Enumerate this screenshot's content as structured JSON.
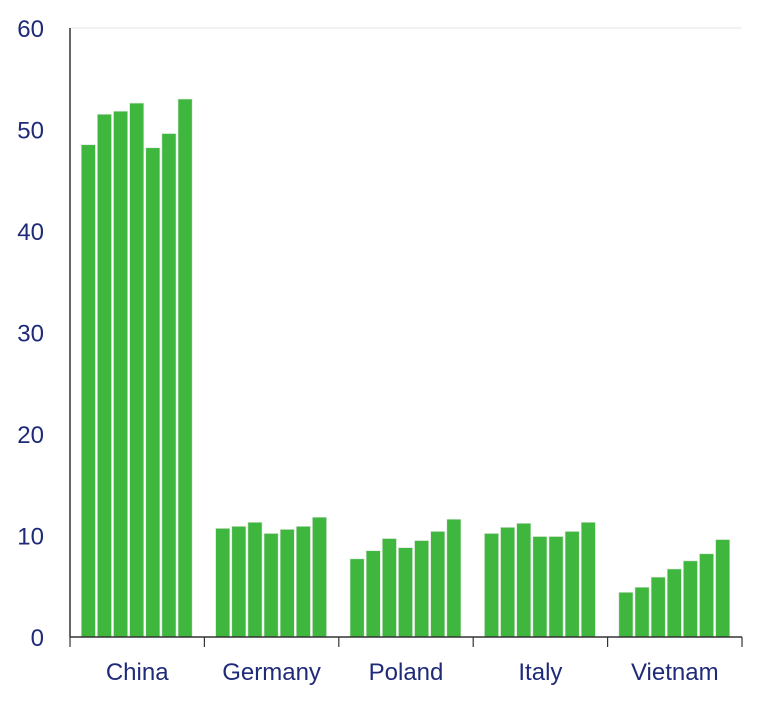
{
  "chart_data": {
    "type": "bar",
    "title": "",
    "xlabel": "",
    "ylabel": "",
    "categories": [
      "China",
      "Germany",
      "Poland",
      "Italy",
      "Vietnam"
    ],
    "bars_per_category": 7,
    "values": [
      [
        48.5,
        51.5,
        51.8,
        52.6,
        48.2,
        49.6,
        53.0
      ],
      [
        10.7,
        10.9,
        11.3,
        10.2,
        10.6,
        10.9,
        11.8
      ],
      [
        7.7,
        8.5,
        9.7,
        8.8,
        9.5,
        10.4,
        11.6
      ],
      [
        10.2,
        10.8,
        11.2,
        9.9,
        9.9,
        10.4,
        11.3
      ],
      [
        4.4,
        4.9,
        5.9,
        6.7,
        7.5,
        8.2,
        9.6
      ]
    ],
    "ylim": [
      0,
      60
    ],
    "yticks": [
      0,
      10,
      20,
      30,
      40,
      50,
      60
    ],
    "grid": false,
    "bar_color": "#3fb73f",
    "axis_label_color": "#1f2a78",
    "axis_line_color": "#333333"
  }
}
